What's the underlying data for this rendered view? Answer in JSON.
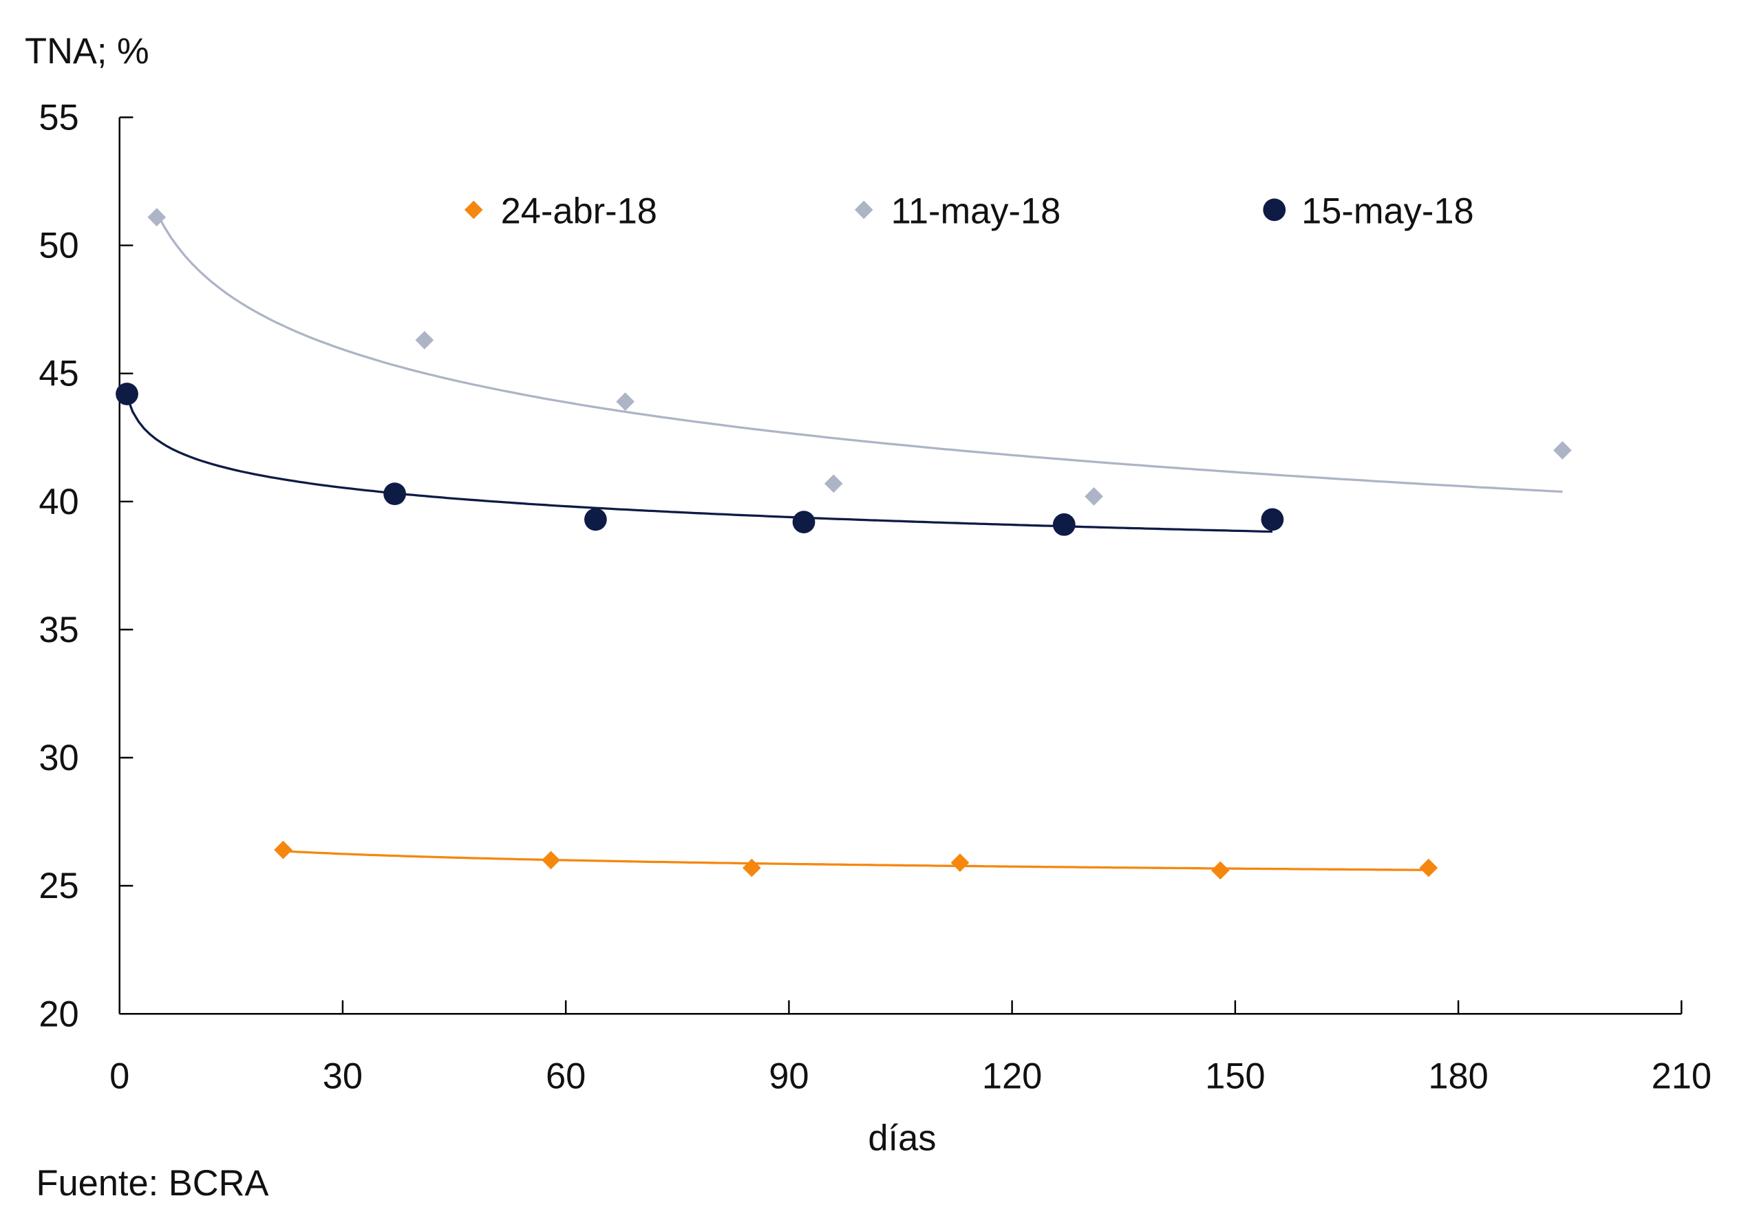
{
  "chart_data": {
    "type": "scatter",
    "title": "",
    "ylabel": "TNA; %",
    "xlabel": "días",
    "source": "Fuente:  BCRA",
    "xlim": [
      0,
      210
    ],
    "ylim": [
      20,
      55
    ],
    "xticks": [
      0,
      30,
      60,
      90,
      120,
      150,
      180,
      210
    ],
    "yticks": [
      20,
      25,
      30,
      35,
      40,
      45,
      50,
      55
    ],
    "grid": false,
    "legend_position": "top",
    "trendline": "logarithmic",
    "series": [
      {
        "name": "24-abr-18",
        "marker": "diamond",
        "color": "#F5870F",
        "x": [
          22,
          58,
          85,
          113,
          148,
          176
        ],
        "y": [
          26.4,
          26.0,
          25.7,
          25.9,
          25.6,
          25.7
        ]
      },
      {
        "name": "11-may-18",
        "marker": "diamond",
        "color": "#ADB4C6",
        "x": [
          5,
          41,
          68,
          96,
          131,
          194
        ],
        "y": [
          51.1,
          46.3,
          43.9,
          40.7,
          40.2,
          42.0
        ]
      },
      {
        "name": "15-may-18",
        "marker": "circle",
        "color": "#0D1B45",
        "x": [
          1,
          37,
          64,
          92,
          127,
          155
        ],
        "y": [
          44.2,
          40.3,
          39.3,
          39.2,
          39.1,
          39.3
        ]
      }
    ]
  }
}
